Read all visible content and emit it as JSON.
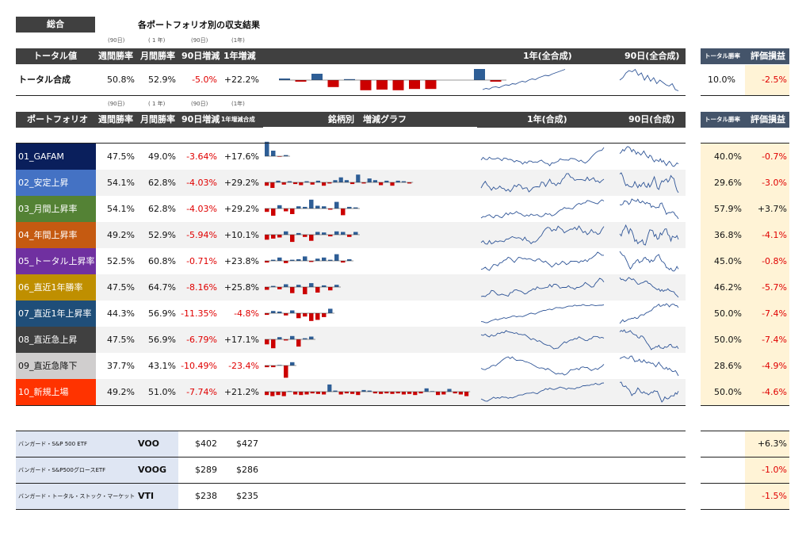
{
  "title_badge": "総合",
  "page_title": "各ポートフォリオ別の収支結果",
  "section1": {
    "paren_labels": [
      "(90日)",
      "( 1 年)",
      "(90日)",
      "(1年)"
    ],
    "headers": [
      "トータル値",
      "週間勝率",
      "月間勝率",
      "90日増減",
      "1年増減",
      "1年(全合成)",
      "90日(全合成)"
    ],
    "right_headers": [
      "トータル勝率",
      "評価損益"
    ],
    "total_row": {
      "name": "トータル合成",
      "weekly": "50.8%",
      "monthly": "52.9%",
      "d90": "-5.0%",
      "y1": "+22.2%",
      "bars": [
        0.5,
        -0.5,
        2.0,
        -2.2,
        0.3,
        -3.2,
        -3.0,
        -3.2,
        -2.8,
        -2.8,
        0,
        0,
        3.5,
        -0.5
      ],
      "spark1y": [
        0.1,
        0.15,
        0.12,
        0.2,
        0.22,
        0.18,
        0.25,
        0.3,
        0.28,
        0.35,
        0.33,
        0.4,
        0.45,
        0.42,
        0.5,
        0.55,
        0.52,
        0.6,
        0.65,
        0.7,
        0.68,
        0.75,
        0.8,
        0.85,
        0.9,
        0.95
      ],
      "spark90": [
        0.5,
        0.6,
        0.8,
        0.9,
        0.85,
        0.95,
        0.7,
        0.8,
        0.5,
        0.7,
        0.45,
        0.6,
        0.35,
        0.5,
        0.4,
        0.3,
        0.25,
        0.35,
        0.1,
        0.05
      ],
      "total_win": "10.0%",
      "eval": "-2.5%"
    }
  },
  "section2": {
    "paren_labels": [
      "(90日)",
      "( 1 年)",
      "(90日)",
      "(1年)"
    ],
    "headers": [
      "ポートフォリオ",
      "週間勝率",
      "月間勝率",
      "90日増減",
      "1年増減合成",
      "銘柄別　増減グラフ",
      "1年(合成)",
      "90日(合成)"
    ],
    "right_headers": [
      "トータル勝率",
      "評価損益"
    ]
  },
  "portfolios": [
    {
      "name": "01_GAFAM",
      "color": "#0a1f5c",
      "weekly": "47.5%",
      "monthly": "49.0%",
      "d90": "-3.64%",
      "y1": "+17.6%",
      "total_win": "40.0%",
      "eval": "-0.7%",
      "bars": [
        2.6,
        1.0,
        -0.1,
        0.2
      ]
    },
    {
      "name": "02_安定上昇",
      "color": "#4472c4",
      "weekly": "54.1%",
      "monthly": "62.8%",
      "d90": "-4.03%",
      "y1": "+29.2%",
      "total_win": "29.6%",
      "eval": "-3.0%",
      "bars": [
        -0.6,
        -1.0,
        0.3,
        -0.4,
        0.2,
        -0.3,
        -0.5,
        0.2,
        -0.4,
        0.3,
        -0.6,
        -0.2,
        0.4,
        0.9,
        0.4,
        -0.3,
        1.4,
        -0.2,
        0.7,
        0.4,
        -0.5,
        0.3,
        -0.6,
        0.3,
        0.2,
        -0.2
      ]
    },
    {
      "name": "03_月間上昇率",
      "color": "#548235",
      "weekly": "54.1%",
      "monthly": "62.8%",
      "d90": "-4.03%",
      "y1": "+29.2%",
      "total_win": "57.9%",
      "eval": "+3.7%",
      "bars": [
        -0.6,
        -1.3,
        0.6,
        -0.5,
        -1.0,
        0.4,
        0.3,
        1.6,
        0.5,
        0.4,
        -0.2,
        1.2,
        -1.2,
        0.3,
        0.2
      ]
    },
    {
      "name": "04_年間上昇率",
      "color": "#c55a11",
      "weekly": "49.2%",
      "monthly": "52.9%",
      "d90": "-5.94%",
      "y1": "+10.1%",
      "total_win": "36.8%",
      "eval": "-4.1%",
      "bars": [
        -0.9,
        -0.7,
        -0.5,
        0.6,
        -1.3,
        0.3,
        -0.4,
        -1.1,
        0.5,
        0.4,
        -0.3,
        0.6,
        0.5,
        -0.4,
        0.5
      ]
    },
    {
      "name": "05_トータル上昇率",
      "color": "#7030a0",
      "weekly": "52.5%",
      "monthly": "60.8%",
      "d90": "-0.71%",
      "y1": "+23.8%",
      "total_win": "45.0%",
      "eval": "-0.8%",
      "bars": [
        -0.3,
        0.2,
        0.6,
        -0.4,
        0.2,
        0.3,
        0.8,
        -0.2,
        0.4,
        0.6,
        0.2,
        1.2,
        -0.3,
        0.3
      ]
    },
    {
      "name": "06_直近1年勝率",
      "color": "#bf8f00",
      "weekly": "47.5%",
      "monthly": "64.7%",
      "d90": "-8.16%",
      "y1": "+25.8%",
      "total_win": "46.2%",
      "eval": "-5.7%",
      "bars": [
        -0.5,
        0.2,
        -0.4,
        0.5,
        -1.1,
        0.4,
        -1.3,
        0.7,
        -1.0,
        0.3,
        -0.6,
        0.4
      ]
    },
    {
      "name": "07_直近1年上昇率",
      "color": "#1f4e79",
      "weekly": "44.3%",
      "monthly": "56.9%",
      "d90": "-11.35%",
      "y1": "-4.8%",
      "total_win": "50.0%",
      "eval": "-7.4%",
      "bars": [
        -0.3,
        0.4,
        0.3,
        -0.4,
        0.5,
        -0.9,
        -0.6,
        -1.4,
        -1.2,
        -0.7,
        0.8
      ]
    },
    {
      "name": "08_直近急上昇",
      "color": "#404040",
      "weekly": "47.5%",
      "monthly": "56.9%",
      "d90": "-6.79%",
      "y1": "+17.1%",
      "total_win": "50.0%",
      "eval": "-7.4%",
      "bars": [
        -0.9,
        -1.6,
        0.4,
        -0.2,
        0.6,
        -1.3,
        0.2,
        0.5
      ]
    },
    {
      "name": "09_直近急降下",
      "color": "#d0cece",
      "weekly": "37.7%",
      "monthly": "43.1%",
      "d90": "-10.49%",
      "y1": "-23.4%",
      "total_win": "28.6%",
      "eval": "-4.9%",
      "bars": [
        -0.3,
        -0.3,
        0.1,
        -2.2,
        0.6
      ]
    },
    {
      "name": "10_新規上場",
      "color": "#ff3300",
      "weekly": "49.2%",
      "monthly": "51.0%",
      "d90": "-7.74%",
      "y1": "+21.2%",
      "total_win": "50.0%",
      "eval": "-4.6%",
      "bars": [
        -0.6,
        -0.8,
        -0.6,
        -0.8,
        0.1,
        -0.5,
        -0.6,
        -0.5,
        -0.3,
        -0.4,
        -0.5,
        1.3,
        0.2,
        -0.5,
        -0.3,
        -0.4,
        -0.6,
        0.3,
        0.2,
        -0.3,
        -0.4,
        -0.3,
        -0.4,
        -0.3,
        -0.5,
        -0.4,
        -0.6,
        -0.3,
        0.6,
        0.1,
        -0.6,
        -0.5,
        0.5,
        -0.3,
        -0.5,
        -0.8
      ]
    }
  ],
  "etfs": [
    {
      "long": "バンガード・S&P 500 ETF",
      "ticker": "VOO",
      "p1": "$402",
      "p2": "$427",
      "eval": "+6.3%"
    },
    {
      "long": "バンガード・S&P500グロースETF",
      "ticker": "VOOG",
      "p1": "$289",
      "p2": "$286",
      "eval": "-1.0%"
    },
    {
      "long": "バンガード・トータル・ストック・マーケット",
      "ticker": "VTI",
      "p1": "$238",
      "p2": "$235",
      "eval": "-1.5%"
    }
  ],
  "colors": {
    "pos_bar": "#2e5e96",
    "neg_bar": "#cc0000",
    "spark": "#2f5597",
    "negtext": "#e00000",
    "header_bg": "#404040",
    "right_header_bg": "#44546a",
    "eval_bg": "#fff3d6"
  }
}
